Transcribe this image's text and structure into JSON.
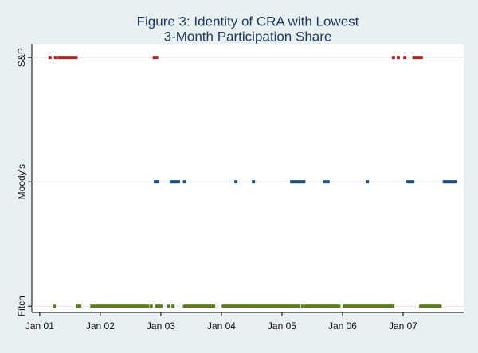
{
  "chart_data": {
    "type": "scatter",
    "title": [
      "Figure 3:  Identity of CRA with Lowest",
      "3-Month Participation Share"
    ],
    "xlim": [
      2000.87,
      2008.0
    ],
    "xticks": [
      {
        "value": 2001,
        "label": "Jan 01"
      },
      {
        "value": 2002,
        "label": "Jan 02"
      },
      {
        "value": 2003,
        "label": "Jan 03"
      },
      {
        "value": 2004,
        "label": "Jan 04"
      },
      {
        "value": 2005,
        "label": "Jan 05"
      },
      {
        "value": 2006,
        "label": "Jan 06"
      },
      {
        "value": 2007,
        "label": "Jan 07"
      }
    ],
    "ylim": [
      -0.05,
      2.11
    ],
    "yticks": [
      {
        "value": 0,
        "label": "Fitch"
      },
      {
        "value": 1,
        "label": "Moody's"
      },
      {
        "value": 2,
        "label": "S&P"
      }
    ],
    "grid": true,
    "series": [
      {
        "color": "#a52a2a",
        "x": [
          2001.17,
          2001.26,
          2001.32,
          2001.36,
          2001.4,
          2001.44,
          2001.48,
          2001.52,
          2001.56,
          2001.6,
          2002.89,
          2002.93,
          2006.84,
          2006.92,
          2007.03,
          2007.18,
          2007.22,
          2007.26,
          2007.3
        ],
        "values": [
          2,
          2,
          2,
          2,
          2,
          2,
          2,
          2,
          2,
          2,
          2,
          2,
          2,
          2,
          2,
          2,
          2,
          2,
          2
        ]
      },
      {
        "color": "#1f4e79",
        "x": [
          2002.91,
          2002.95,
          2003.17,
          2003.21,
          2003.25,
          2003.29,
          2003.39,
          2004.24,
          2004.53,
          2005.16,
          2005.2,
          2005.24,
          2005.28,
          2005.32,
          2005.36,
          2005.71,
          2005.76,
          2006.41,
          2007.08,
          2007.12,
          2007.16,
          2007.68,
          2007.72,
          2007.76,
          2007.8,
          2007.84,
          2007.87
        ],
        "values": [
          1,
          1,
          1,
          1,
          1,
          1,
          1,
          1,
          1,
          1,
          1,
          1,
          1,
          1,
          1,
          1,
          1,
          1,
          1,
          1,
          1,
          1,
          1,
          1,
          1,
          1,
          1
        ]
      },
      {
        "color": "#5b7d1e",
        "x": [
          2001.24,
          2001.63,
          2001.66,
          2001.86,
          2001.9,
          2001.94,
          2001.98,
          2002.02,
          2002.06,
          2002.1,
          2002.14,
          2002.18,
          2002.22,
          2002.26,
          2002.3,
          2002.34,
          2002.38,
          2002.42,
          2002.46,
          2002.5,
          2002.54,
          2002.58,
          2002.62,
          2002.66,
          2002.7,
          2002.74,
          2002.78,
          2002.84,
          2002.93,
          2002.97,
          2003,
          2003.13,
          2003.2,
          2003.39,
          2003.43,
          2003.47,
          2003.51,
          2003.55,
          2003.59,
          2003.63,
          2003.67,
          2003.71,
          2003.75,
          2003.79,
          2003.83,
          2003.87,
          2004.03,
          2004.07,
          2004.11,
          2004.15,
          2004.19,
          2004.23,
          2004.27,
          2004.31,
          2004.35,
          2004.39,
          2004.43,
          2004.47,
          2004.51,
          2004.55,
          2004.59,
          2004.63,
          2004.67,
          2004.71,
          2004.75,
          2004.79,
          2004.83,
          2004.87,
          2004.91,
          2004.95,
          2004.99,
          2005.03,
          2005.07,
          2005.11,
          2005.15,
          2005.19,
          2005.23,
          2005.27,
          2005.34,
          2005.38,
          2005.42,
          2005.46,
          2005.5,
          2005.54,
          2005.58,
          2005.62,
          2005.66,
          2005.7,
          2005.74,
          2005.78,
          2005.82,
          2005.86,
          2005.9,
          2005.94,
          2006.03,
          2006.07,
          2006.11,
          2006.15,
          2006.19,
          2006.23,
          2006.27,
          2006.31,
          2006.35,
          2006.39,
          2006.43,
          2006.47,
          2006.51,
          2006.55,
          2006.59,
          2006.63,
          2006.67,
          2006.71,
          2006.75,
          2006.79,
          2006.83,
          2007.29,
          2007.33,
          2007.37,
          2007.41,
          2007.45,
          2007.49,
          2007.53,
          2007.57,
          2007.61
        ],
        "values": [
          0,
          0,
          0,
          0,
          0,
          0,
          0,
          0,
          0,
          0,
          0,
          0,
          0,
          0,
          0,
          0,
          0,
          0,
          0,
          0,
          0,
          0,
          0,
          0,
          0,
          0,
          0,
          0,
          0,
          0,
          0,
          0,
          0,
          0,
          0,
          0,
          0,
          0,
          0,
          0,
          0,
          0,
          0,
          0,
          0,
          0,
          0,
          0,
          0,
          0,
          0,
          0,
          0,
          0,
          0,
          0,
          0,
          0,
          0,
          0,
          0,
          0,
          0,
          0,
          0,
          0,
          0,
          0,
          0,
          0,
          0,
          0,
          0,
          0,
          0,
          0,
          0,
          0,
          0,
          0,
          0,
          0,
          0,
          0,
          0,
          0,
          0,
          0,
          0,
          0,
          0,
          0,
          0,
          0,
          0,
          0,
          0,
          0,
          0,
          0,
          0,
          0,
          0,
          0,
          0,
          0,
          0,
          0,
          0,
          0,
          0,
          0,
          0,
          0,
          0,
          0,
          0,
          0,
          0,
          0,
          0,
          0,
          0,
          0
        ]
      }
    ]
  }
}
